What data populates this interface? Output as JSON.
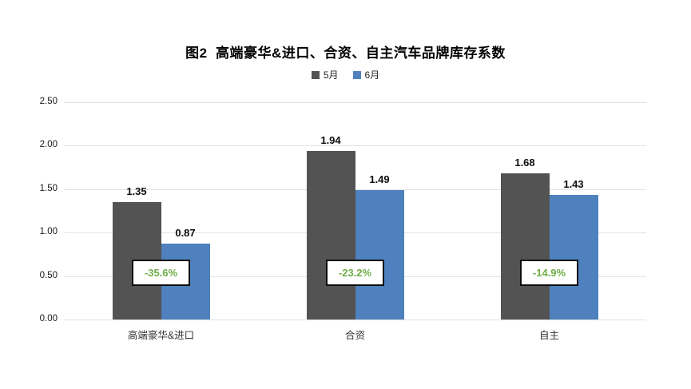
{
  "title": "图2  高端豪华&进口、合资、自主汽车品牌库存系数",
  "chart_data": {
    "type": "bar",
    "title": "图2  高端豪华&进口、合资、自主汽车品牌库存系数",
    "categories": [
      "高端豪华&进口",
      "合资",
      "自主"
    ],
    "series": [
      {
        "name": "5月",
        "color": "#535353",
        "values": [
          1.35,
          1.94,
          1.68
        ]
      },
      {
        "name": "6月",
        "color": "#4e81bd",
        "values": [
          0.87,
          1.49,
          1.43
        ]
      }
    ],
    "value_labels": [
      [
        "1.35",
        "1.94",
        "1.68"
      ],
      [
        "0.87",
        "1.49",
        "1.43"
      ]
    ],
    "change_labels": [
      "-35.6%",
      "-23.2%",
      "-14.9%"
    ],
    "change_label_color": "#70ad47",
    "xlabel": "",
    "ylabel": "",
    "ylim": [
      0,
      2.5
    ],
    "yticks": [
      "0.00",
      "0.50",
      "1.00",
      "1.50",
      "2.00",
      "2.50"
    ],
    "grid": true,
    "gridline_color": "#e2e2e2",
    "legend_position": "top"
  }
}
